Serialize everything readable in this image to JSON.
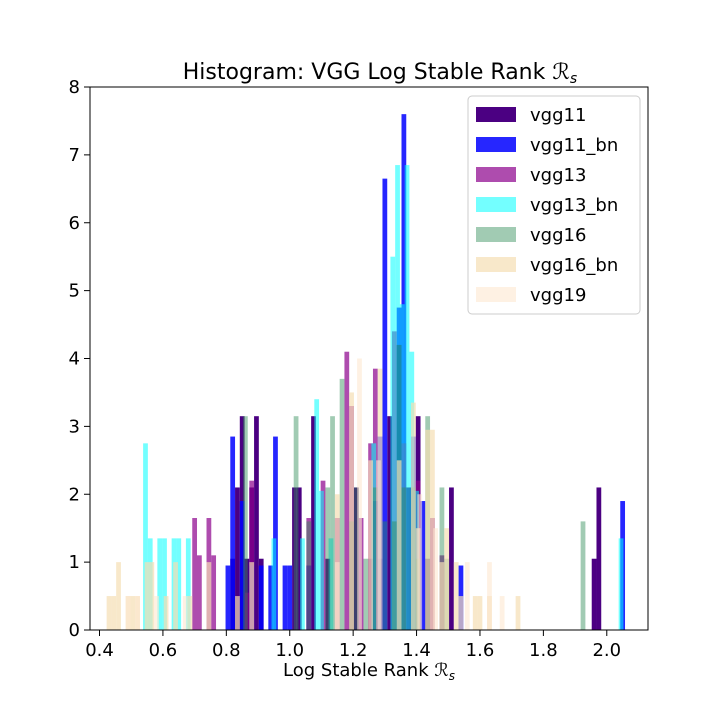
{
  "chart_data": {
    "type": "bar",
    "title": "Histogram: VGG Log Stable Rank ℛ",
    "title_sub": "s",
    "xlabel": "Log Stable Rank ℛ",
    "xlabel_sub": "s",
    "ylabel": "",
    "xlim": [
      0.37,
      2.13
    ],
    "ylim": [
      0,
      8
    ],
    "x_ticks": [
      "0.4",
      "0.6",
      "0.8",
      "1.0",
      "1.2",
      "1.4",
      "1.6",
      "1.8",
      "2.0"
    ],
    "y_ticks": [
      "0",
      "1",
      "2",
      "3",
      "4",
      "5",
      "6",
      "7",
      "8"
    ],
    "legend_position": "upper-right",
    "grid": false,
    "series": [
      {
        "name": "vgg11",
        "color": "#4b0082",
        "opacity": 1.0,
        "bins": [
          {
            "x": 0.82,
            "y": 1.05
          },
          {
            "x": 0.835,
            "y": 2.1
          },
          {
            "x": 0.85,
            "y": 3.15
          },
          {
            "x": 0.865,
            "y": 1.05
          },
          {
            "x": 0.88,
            "y": 2.1
          },
          {
            "x": 0.895,
            "y": 3.15
          },
          {
            "x": 0.91,
            "y": 1.05
          },
          {
            "x": 1.015,
            "y": 2.1
          },
          {
            "x": 1.03,
            "y": 2.1
          },
          {
            "x": 1.075,
            "y": 3.15
          },
          {
            "x": 1.12,
            "y": 1.05
          },
          {
            "x": 1.21,
            "y": 2.1
          },
          {
            "x": 1.255,
            "y": 1.05
          },
          {
            "x": 1.285,
            "y": 1.05
          },
          {
            "x": 1.315,
            "y": 3.15
          },
          {
            "x": 1.345,
            "y": 4.2
          },
          {
            "x": 1.375,
            "y": 2.1
          },
          {
            "x": 1.405,
            "y": 3.15
          },
          {
            "x": 1.435,
            "y": 1.05
          },
          {
            "x": 1.51,
            "y": 2.1
          },
          {
            "x": 1.96,
            "y": 1.05
          },
          {
            "x": 1.975,
            "y": 2.1
          }
        ]
      },
      {
        "name": "vgg11_bn",
        "color": "#0000ff",
        "opacity": 0.85,
        "bins": [
          {
            "x": 0.805,
            "y": 0.95
          },
          {
            "x": 0.82,
            "y": 2.85
          },
          {
            "x": 0.85,
            "y": 1.9
          },
          {
            "x": 0.88,
            "y": 0.95
          },
          {
            "x": 0.91,
            "y": 0.95
          },
          {
            "x": 0.94,
            "y": 0.95
          },
          {
            "x": 0.955,
            "y": 2.85
          },
          {
            "x": 0.985,
            "y": 0.95
          },
          {
            "x": 1.0,
            "y": 0.95
          },
          {
            "x": 1.06,
            "y": 0.95
          },
          {
            "x": 1.27,
            "y": 1.9
          },
          {
            "x": 1.285,
            "y": 2.85
          },
          {
            "x": 1.3,
            "y": 6.65
          },
          {
            "x": 1.345,
            "y": 4.75
          },
          {
            "x": 1.36,
            "y": 7.6
          },
          {
            "x": 1.39,
            "y": 2.85
          },
          {
            "x": 1.42,
            "y": 1.9
          },
          {
            "x": 1.54,
            "y": 0.95
          },
          {
            "x": 2.05,
            "y": 1.9
          }
        ]
      },
      {
        "name": "vgg13",
        "color": "#8b008b",
        "opacity": 0.7,
        "bins": [
          {
            "x": 0.7,
            "y": 1.65
          },
          {
            "x": 0.715,
            "y": 1.1
          },
          {
            "x": 0.745,
            "y": 1.65
          },
          {
            "x": 0.76,
            "y": 1.1
          },
          {
            "x": 0.865,
            "y": 0.55
          },
          {
            "x": 0.88,
            "y": 2.2
          },
          {
            "x": 1.06,
            "y": 1.65
          },
          {
            "x": 1.105,
            "y": 2.2
          },
          {
            "x": 1.15,
            "y": 1.65
          },
          {
            "x": 1.18,
            "y": 4.1
          },
          {
            "x": 1.195,
            "y": 3.3
          },
          {
            "x": 1.225,
            "y": 1.65
          },
          {
            "x": 1.255,
            "y": 2.75
          },
          {
            "x": 1.27,
            "y": 3.85
          },
          {
            "x": 1.33,
            "y": 4.4
          },
          {
            "x": 1.36,
            "y": 2.75
          },
          {
            "x": 1.405,
            "y": 2.2
          },
          {
            "x": 1.45,
            "y": 1.65
          },
          {
            "x": 1.48,
            "y": 1.1
          }
        ]
      },
      {
        "name": "vgg13_bn",
        "color": "#00ffff",
        "opacity": 0.55,
        "bins": [
          {
            "x": 0.545,
            "y": 2.75
          },
          {
            "x": 0.56,
            "y": 1.35
          },
          {
            "x": 0.59,
            "y": 1.35
          },
          {
            "x": 0.605,
            "y": 1.35
          },
          {
            "x": 0.635,
            "y": 1.35
          },
          {
            "x": 0.65,
            "y": 1.35
          },
          {
            "x": 0.68,
            "y": 1.35
          },
          {
            "x": 0.95,
            "y": 1.35
          },
          {
            "x": 1.04,
            "y": 1.35
          },
          {
            "x": 1.085,
            "y": 3.4
          },
          {
            "x": 1.1,
            "y": 2.05
          },
          {
            "x": 1.13,
            "y": 1.35
          },
          {
            "x": 1.265,
            "y": 2.75
          },
          {
            "x": 1.325,
            "y": 5.5
          },
          {
            "x": 1.34,
            "y": 6.85
          },
          {
            "x": 1.355,
            "y": 4.8
          },
          {
            "x": 1.37,
            "y": 6.85
          },
          {
            "x": 1.385,
            "y": 4.1
          },
          {
            "x": 1.4,
            "y": 2.05
          },
          {
            "x": 2.045,
            "y": 1.35
          }
        ]
      },
      {
        "name": "vgg16",
        "color": "#2e8b57",
        "opacity": 0.45,
        "bins": [
          {
            "x": 0.86,
            "y": 3.15
          },
          {
            "x": 1.02,
            "y": 3.15
          },
          {
            "x": 1.06,
            "y": 1.6
          },
          {
            "x": 1.12,
            "y": 2.1
          },
          {
            "x": 1.135,
            "y": 3.15
          },
          {
            "x": 1.165,
            "y": 3.7
          },
          {
            "x": 1.195,
            "y": 1.6
          },
          {
            "x": 1.21,
            "y": 2.1
          },
          {
            "x": 1.24,
            "y": 1.05
          },
          {
            "x": 1.27,
            "y": 2.1
          },
          {
            "x": 1.3,
            "y": 1.6
          },
          {
            "x": 1.33,
            "y": 1.6
          },
          {
            "x": 1.345,
            "y": 4.2
          },
          {
            "x": 1.36,
            "y": 2.1
          },
          {
            "x": 1.39,
            "y": 2.1
          },
          {
            "x": 1.405,
            "y": 1.05
          },
          {
            "x": 1.435,
            "y": 3.15
          },
          {
            "x": 1.48,
            "y": 2.1
          },
          {
            "x": 1.495,
            "y": 1.05
          },
          {
            "x": 1.925,
            "y": 1.6
          }
        ]
      },
      {
        "name": "vgg16_bn",
        "color": "#f5deb3",
        "opacity": 0.7,
        "bins": [
          {
            "x": 0.43,
            "y": 0.5
          },
          {
            "x": 0.445,
            "y": 0.5
          },
          {
            "x": 0.46,
            "y": 1.0
          },
          {
            "x": 0.49,
            "y": 0.5
          },
          {
            "x": 0.505,
            "y": 0.5
          },
          {
            "x": 0.52,
            "y": 0.5
          },
          {
            "x": 0.55,
            "y": 1.0
          },
          {
            "x": 0.565,
            "y": 1.0
          },
          {
            "x": 0.61,
            "y": 0.5
          },
          {
            "x": 0.64,
            "y": 1.0
          },
          {
            "x": 0.685,
            "y": 0.5
          },
          {
            "x": 0.745,
            "y": 1.0
          },
          {
            "x": 0.835,
            "y": 0.5
          },
          {
            "x": 0.88,
            "y": 1.0
          },
          {
            "x": 1.15,
            "y": 2.0
          },
          {
            "x": 1.195,
            "y": 3.5
          },
          {
            "x": 1.255,
            "y": 2.5
          },
          {
            "x": 1.285,
            "y": 3.85
          },
          {
            "x": 1.345,
            "y": 2.5
          },
          {
            "x": 1.39,
            "y": 3.35
          },
          {
            "x": 1.405,
            "y": 1.5
          },
          {
            "x": 1.435,
            "y": 2.95
          },
          {
            "x": 1.45,
            "y": 2.95
          },
          {
            "x": 1.48,
            "y": 1.0
          },
          {
            "x": 1.495,
            "y": 1.5
          },
          {
            "x": 1.525,
            "y": 1.0
          },
          {
            "x": 1.54,
            "y": 0.5
          },
          {
            "x": 1.585,
            "y": 0.5
          },
          {
            "x": 1.6,
            "y": 0.5
          },
          {
            "x": 1.63,
            "y": 0.5
          },
          {
            "x": 1.72,
            "y": 0.5
          }
        ]
      },
      {
        "name": "vgg19",
        "color": "#fde8d0",
        "opacity": 0.6,
        "bins": [
          {
            "x": 0.49,
            "y": 0.5
          },
          {
            "x": 0.52,
            "y": 0.5
          },
          {
            "x": 0.58,
            "y": 0.5
          },
          {
            "x": 0.67,
            "y": 0.5
          },
          {
            "x": 1.15,
            "y": 1.0
          },
          {
            "x": 1.22,
            "y": 4.0
          },
          {
            "x": 1.28,
            "y": 2.5
          },
          {
            "x": 1.41,
            "y": 2.0
          },
          {
            "x": 1.46,
            "y": 1.5
          },
          {
            "x": 1.56,
            "y": 1.0
          },
          {
            "x": 1.63,
            "y": 1.0
          },
          {
            "x": 1.67,
            "y": 0.5
          }
        ]
      }
    ]
  }
}
